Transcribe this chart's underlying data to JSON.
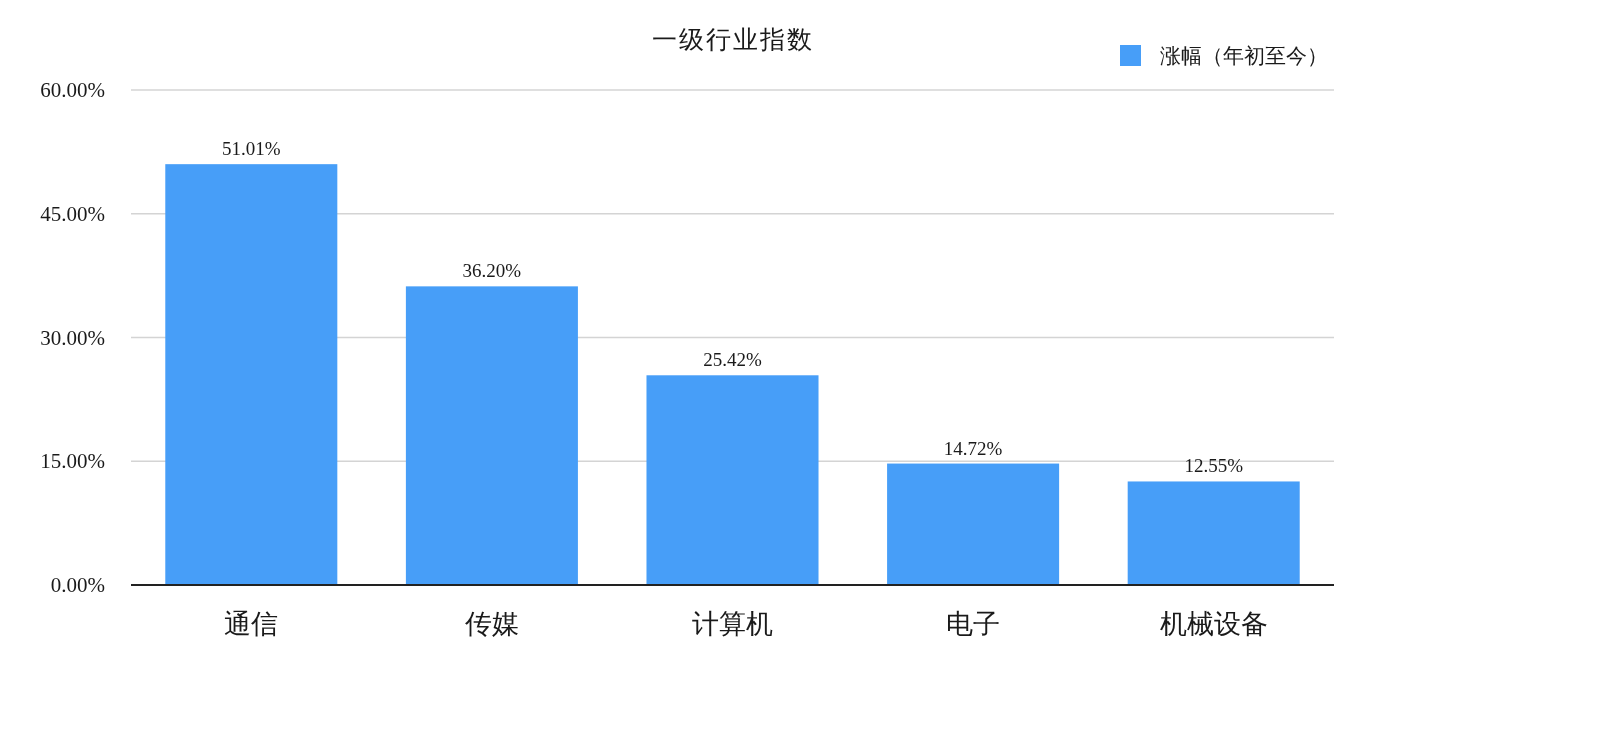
{
  "chart_data": {
    "type": "bar",
    "title": "一级行业指数",
    "categories": [
      "通信",
      "传媒",
      "计算机",
      "电子",
      "机械设备"
    ],
    "series": [
      {
        "name": "涨幅（年初至今）",
        "color": "#479ef8",
        "values": [
          51.01,
          36.2,
          25.42,
          14.72,
          12.55
        ],
        "value_labels": [
          "51.01%",
          "36.20%",
          "25.42%",
          "14.72%",
          "12.55%"
        ]
      }
    ],
    "ylim": [
      0,
      60
    ],
    "yticks": [
      {
        "value": 0,
        "label": "0.00%"
      },
      {
        "value": 15,
        "label": "15.00%"
      },
      {
        "value": 30,
        "label": "30.00%"
      },
      {
        "value": 45,
        "label": "45.00%"
      },
      {
        "value": 60,
        "label": "60.00%"
      }
    ],
    "grid": "y",
    "legend": "top right"
  }
}
